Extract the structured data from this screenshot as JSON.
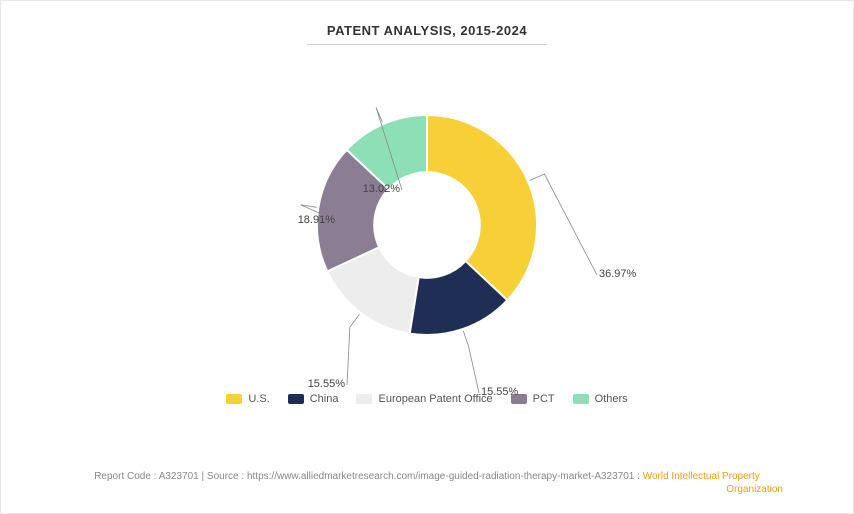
{
  "chart": {
    "type": "donut",
    "title": "PATENT ANALYSIS, 2015-2024",
    "title_fontsize": 13,
    "title_color": "#333333",
    "background_color": "#ffffff",
    "inner_radius_ratio": 0.48,
    "outer_radius": 110,
    "series": [
      {
        "label": "U.S.",
        "value": 36.97,
        "display": "36.97%",
        "color": "#f7d038"
      },
      {
        "label": "China",
        "value": 15.55,
        "display": "15.55%",
        "color": "#1f2e55"
      },
      {
        "label": "European Patent Office",
        "value": 15.55,
        "display": "15.55%",
        "color": "#ededed"
      },
      {
        "label": "PCT",
        "value": 18.91,
        "display": "18.91%",
        "color": "#8b7d93"
      },
      {
        "label": "Others",
        "value": 13.02,
        "display": "13.02%",
        "color": "#8de0b6"
      }
    ],
    "label_fontsize": 11,
    "label_color": "#444444",
    "legend_fontsize": 11,
    "legend_swatch_width": 16,
    "legend_swatch_height": 10,
    "leader_color": "#888888"
  },
  "footer": {
    "report_code_label": "Report Code :",
    "report_code": "A323701",
    "source_label": "Source :",
    "source_url": "https://www.alliedmarketresearch.com/image-guided-radiation-therapy-market-A323701 :",
    "source_name": "World Intellectual Property",
    "source_name2": "Organization",
    "separator": " | ",
    "text_color": "#888888",
    "link_color": "#f39c12",
    "fontsize": 10
  }
}
